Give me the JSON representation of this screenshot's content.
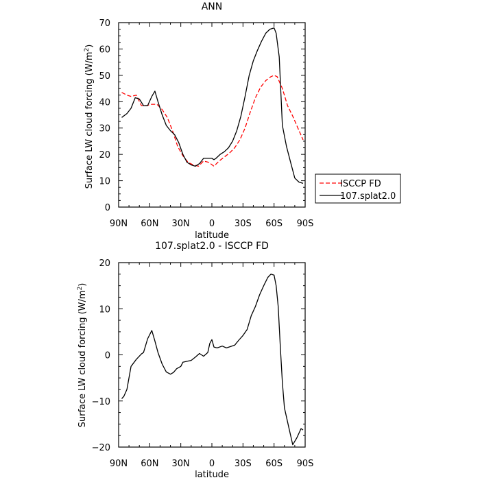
{
  "chart_data": [
    {
      "type": "line",
      "title": "ANN",
      "xlabel": "latitude",
      "ylabel": "Surface LW cloud forcing (W/m²)",
      "ylabel_parts": {
        "main": "Surface LW cloud forcing (W/m",
        "sup": "2",
        "end": ")"
      },
      "x_unit": "degrees latitude (90N = 90, 90S = -90)",
      "xlim": [
        90,
        -90
      ],
      "ylim": [
        0,
        70
      ],
      "x_ticks": [
        90,
        60,
        30,
        0,
        -30,
        -60,
        -90
      ],
      "x_tick_labels": [
        "90N",
        "60N",
        "30N",
        "0",
        "30S",
        "60S",
        "90S"
      ],
      "y_ticks": [
        0,
        10,
        20,
        30,
        40,
        50,
        60,
        70
      ],
      "y_tick_labels": [
        "0",
        "10",
        "20",
        "30",
        "40",
        "50",
        "60",
        "70"
      ],
      "grid": false,
      "legend": {
        "placement": "right, outside plot",
        "entries": [
          "ISCCP FD",
          "107.splat2.0"
        ]
      },
      "series": [
        {
          "name": "ISCCP FD",
          "color": "#ff0000",
          "dash": "dashed",
          "x": [
            87,
            82,
            78,
            73,
            68,
            63,
            58,
            53,
            48,
            43,
            38,
            33,
            28,
            23,
            18,
            13,
            8,
            3,
            -2,
            -7,
            -12,
            -17,
            -22,
            -27,
            -32,
            -37,
            -42,
            -47,
            -52,
            -57,
            -60,
            -63,
            -68,
            -73,
            -78,
            -83,
            -88
          ],
          "y": [
            43.5,
            42.5,
            42,
            42.5,
            38.5,
            38.5,
            39,
            39,
            37,
            34,
            29,
            23,
            19.5,
            17,
            16,
            15.5,
            17.5,
            17,
            15.5,
            17.5,
            19,
            20.5,
            22.5,
            25.5,
            30,
            36,
            41.5,
            45.5,
            48,
            49.5,
            50,
            49.5,
            45,
            38.5,
            34.5,
            30,
            25.5
          ]
        },
        {
          "name": "107.splat2.0",
          "color": "#000000",
          "dash": "solid",
          "x": [
            87,
            82,
            78,
            74,
            70,
            66,
            62,
            58,
            55,
            52,
            48,
            44,
            40,
            36,
            32,
            28,
            24,
            20,
            16,
            12,
            8,
            4,
            0,
            -2,
            -4,
            -8,
            -12,
            -16,
            -20,
            -24,
            -28,
            -32,
            -36,
            -40,
            -44,
            -48,
            -52,
            -56,
            -60,
            -62,
            -65,
            -68,
            -72,
            -76,
            -80,
            -84,
            -88
          ],
          "y": [
            34,
            35.5,
            37.5,
            41.5,
            41,
            38.5,
            38.5,
            42,
            44,
            40,
            35,
            31,
            29,
            27.5,
            24.5,
            20,
            17,
            16,
            15.5,
            16.5,
            18.5,
            18.5,
            18.5,
            18,
            18.5,
            20,
            21,
            22.5,
            25,
            29,
            34.5,
            42,
            50,
            55.5,
            59.5,
            63,
            66,
            67.5,
            68,
            66,
            57,
            31,
            23,
            17,
            11,
            9.5,
            9
          ]
        }
      ]
    },
    {
      "type": "line",
      "title": "107.splat2.0 - ISCCP FD",
      "xlabel": "latitude",
      "ylabel": "Surface LW cloud forcing (W/m²)",
      "ylabel_parts": {
        "main": "Surface LW cloud forcing (W/m",
        "sup": "2",
        "end": ")"
      },
      "x_unit": "degrees latitude (90N = 90, 90S = -90)",
      "xlim": [
        90,
        -90
      ],
      "ylim": [
        -20,
        20
      ],
      "x_ticks": [
        90,
        60,
        30,
        0,
        -30,
        -60,
        -90
      ],
      "x_tick_labels": [
        "90N",
        "60N",
        "30N",
        "0",
        "30S",
        "60S",
        "90S"
      ],
      "y_ticks": [
        -20,
        -10,
        0,
        10,
        20
      ],
      "y_tick_labels": [
        "−20",
        "−10",
        "0",
        "10",
        "20"
      ],
      "grid": false,
      "series": [
        {
          "color": "#000000",
          "dash": "solid",
          "x": [
            87,
            85,
            82,
            78,
            73,
            68,
            66,
            62,
            58,
            55,
            52,
            48,
            44,
            40,
            37,
            34,
            30,
            28,
            24,
            20,
            16,
            12,
            8,
            4,
            2,
            0,
            -2,
            -5,
            -10,
            -14,
            -18,
            -22,
            -26,
            -30,
            -34,
            -38,
            -42,
            -46,
            -50,
            -54,
            -57,
            -60,
            -62,
            -64,
            -66,
            -68,
            -70,
            -74,
            -78,
            -82,
            -86,
            -88
          ],
          "y": [
            -9.5,
            -9,
            -7.5,
            -2.5,
            -1,
            0.2,
            0.5,
            3.5,
            5.3,
            3,
            0.5,
            -2,
            -3.7,
            -4.2,
            -3.8,
            -3,
            -2.5,
            -1.6,
            -1.4,
            -1.2,
            -0.5,
            0.3,
            -0.3,
            0.5,
            2.5,
            3.3,
            1.7,
            1.5,
            1.9,
            1.5,
            1.8,
            2.1,
            3.2,
            4.2,
            5.5,
            8.5,
            10.5,
            13,
            15,
            16.8,
            17.5,
            17.3,
            15,
            10.5,
            2,
            -6,
            -11.5,
            -15.5,
            -19.5,
            -18,
            -16,
            -16.3
          ]
        }
      ]
    }
  ]
}
